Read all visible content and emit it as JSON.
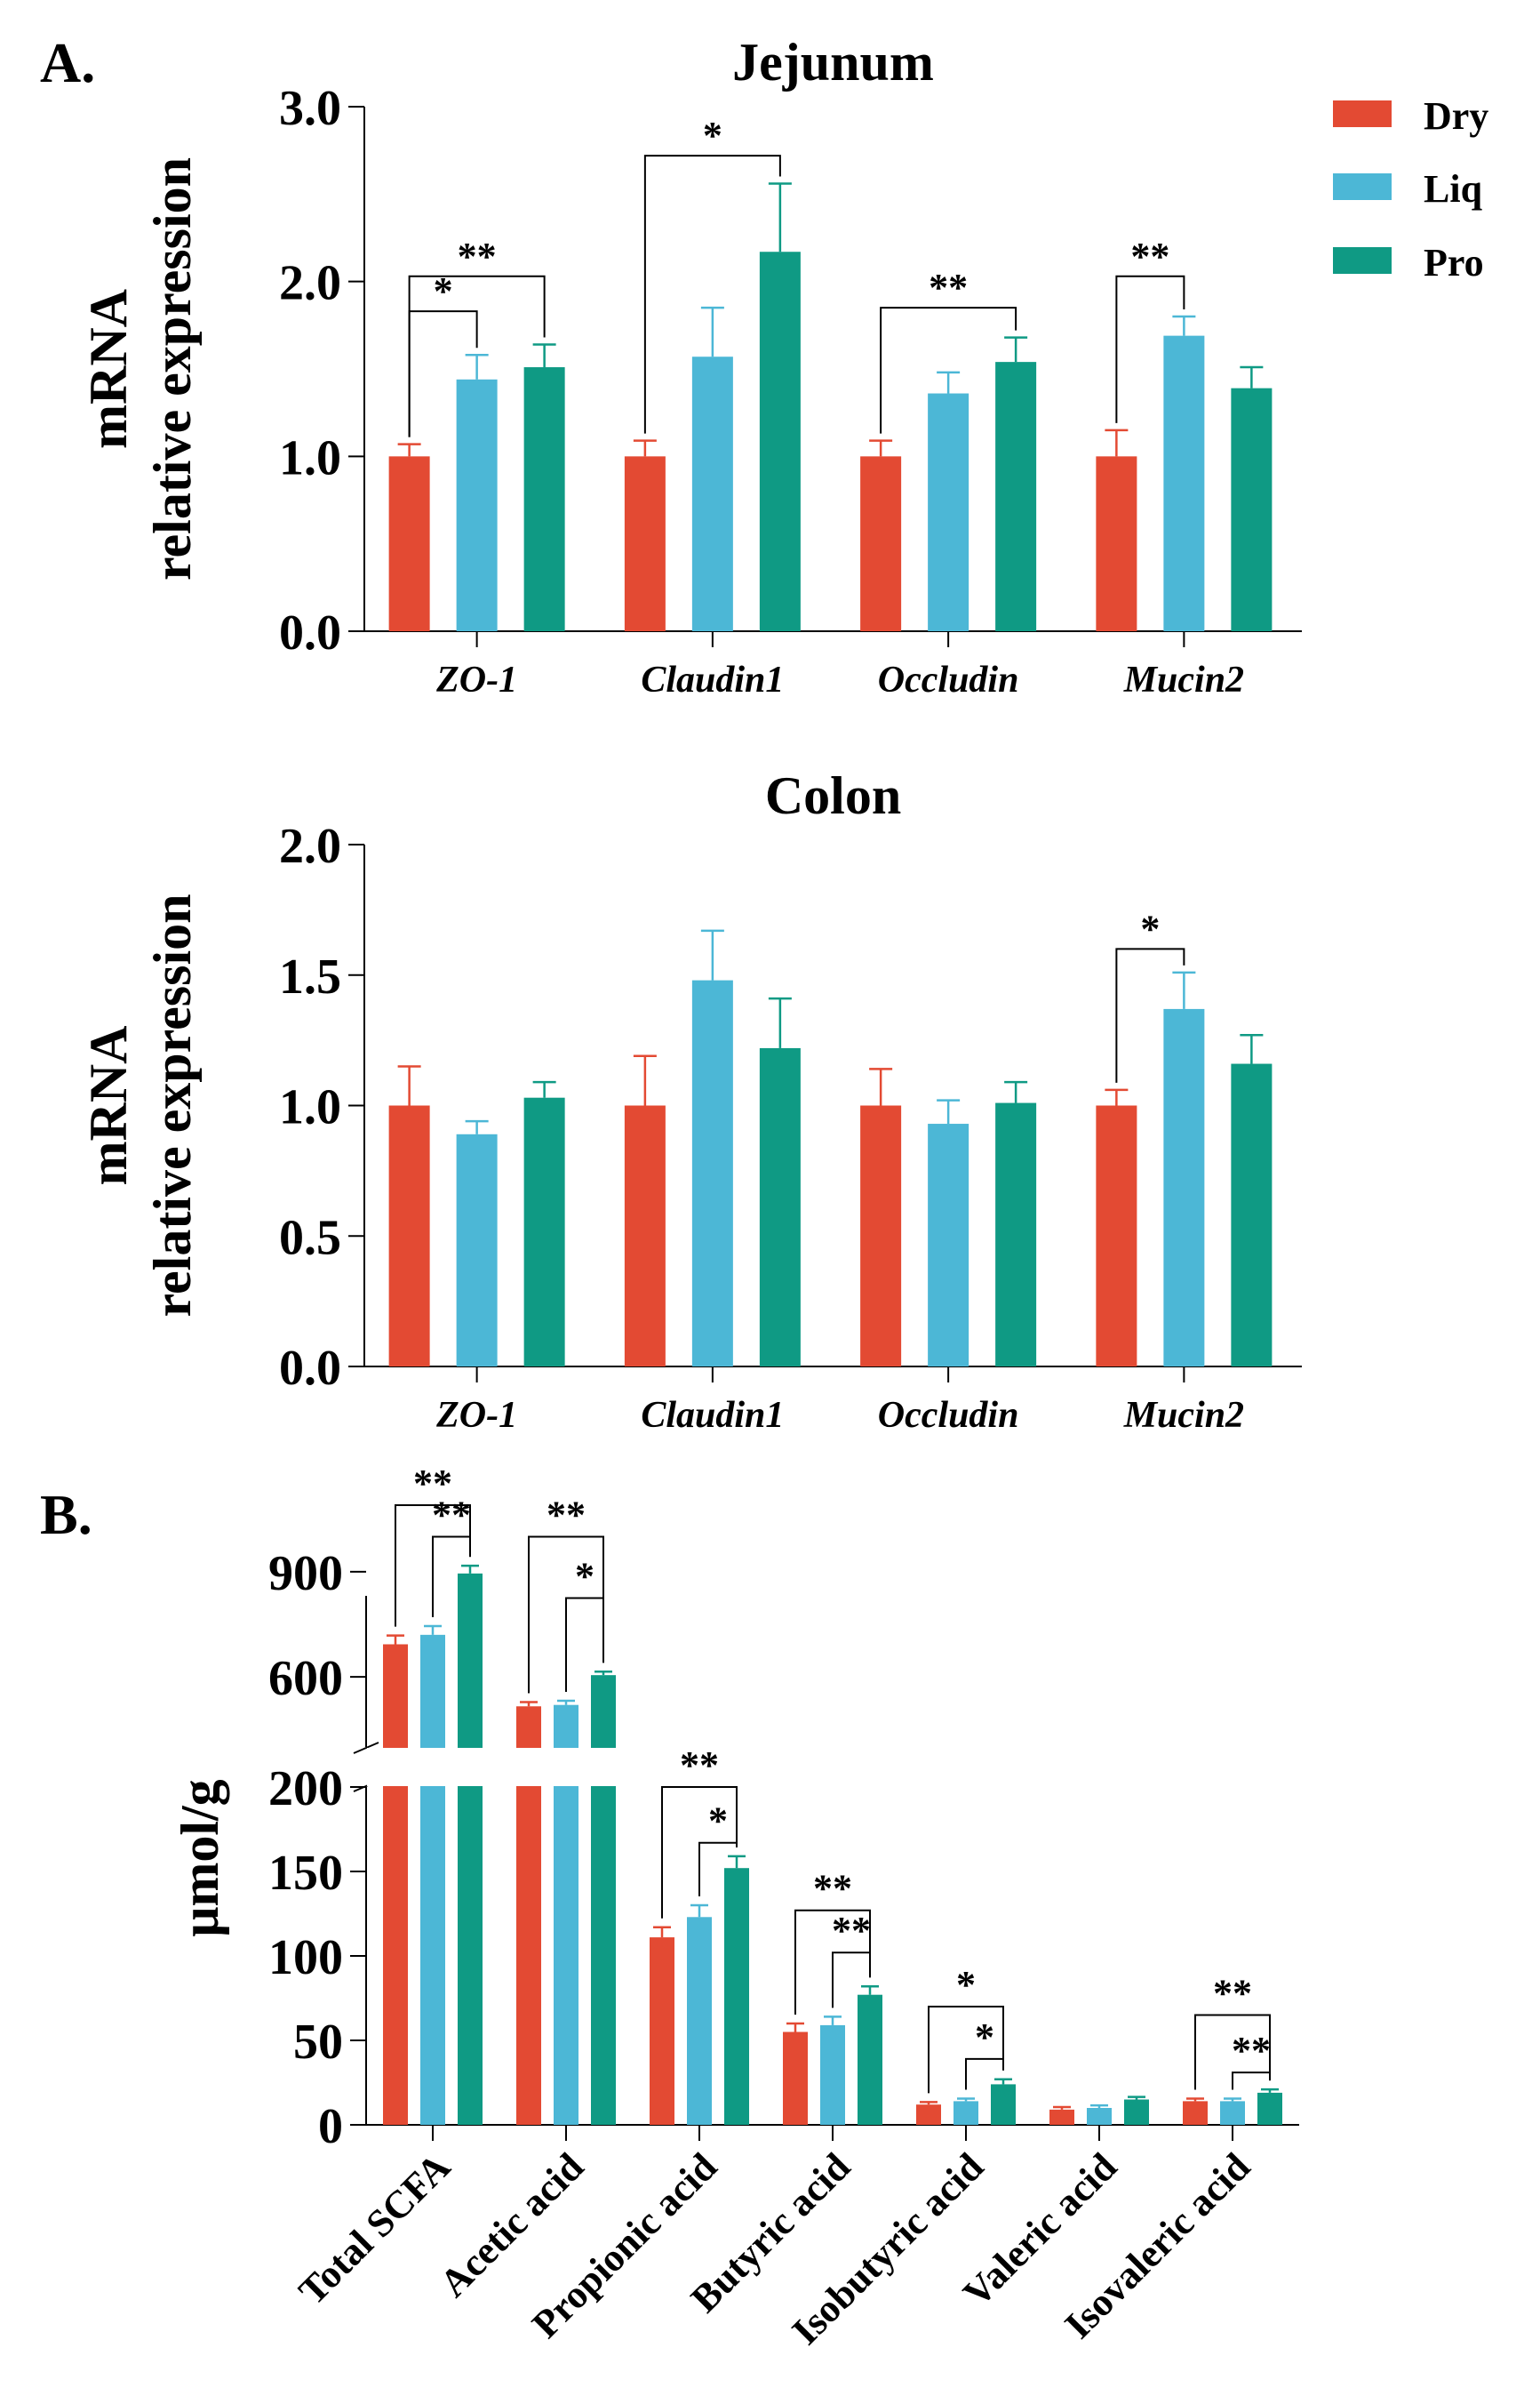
{
  "colors": {
    "dry": "#e34a33",
    "liq": "#4cb7d6",
    "pro": "#0f9a84",
    "axis": "#000000"
  },
  "legend": [
    {
      "key": "dry",
      "label": "Dry"
    },
    {
      "key": "liq",
      "label": "Liq"
    },
    {
      "key": "pro",
      "label": "Pro"
    }
  ],
  "panel_labels": {
    "a": "A.",
    "b": "B."
  },
  "chart_data": [
    {
      "type": "bar",
      "title": "Jejunum",
      "ylabel_line1": "mRNA",
      "ylabel_line2": "relative expression",
      "ylim": [
        0,
        3
      ],
      "yticks": [
        "0.0",
        "1.0",
        "2.0",
        "3.0"
      ],
      "ytick_values": [
        0,
        1,
        2,
        3
      ],
      "categories": [
        "ZO-1",
        "Claudin1",
        "Occludin",
        "Mucin2"
      ],
      "series": [
        {
          "name": "Dry",
          "values": [
            1.0,
            1.0,
            1.0,
            1.0
          ],
          "errors": [
            0.07,
            0.09,
            0.09,
            0.15
          ]
        },
        {
          "name": "Liq",
          "values": [
            1.44,
            1.57,
            1.36,
            1.69
          ],
          "errors": [
            0.14,
            0.28,
            0.12,
            0.11
          ]
        },
        {
          "name": "Pro",
          "values": [
            1.51,
            2.17,
            1.54,
            1.39
          ],
          "errors": [
            0.13,
            0.39,
            0.14,
            0.12
          ]
        }
      ],
      "significance": [
        {
          "category": 0,
          "from": "Dry",
          "to": "Liq",
          "label": "*",
          "level": 1.83
        },
        {
          "category": 0,
          "from": "Dry",
          "to": "Pro",
          "label": "**",
          "level": 2.03
        },
        {
          "category": 1,
          "from": "Dry",
          "to": "Pro",
          "label": "*",
          "level": 2.72
        },
        {
          "category": 2,
          "from": "Dry",
          "to": "Pro",
          "label": "**",
          "level": 1.85
        },
        {
          "category": 3,
          "from": "Dry",
          "to": "Liq",
          "label": "**",
          "level": 2.03
        }
      ]
    },
    {
      "type": "bar",
      "title": "Colon",
      "ylabel_line1": "mRNA",
      "ylabel_line2": "relative expression",
      "ylim": [
        0,
        2
      ],
      "yticks": [
        "0.0",
        "0.5",
        "1.0",
        "1.5",
        "2.0"
      ],
      "ytick_values": [
        0,
        0.5,
        1,
        1.5,
        2
      ],
      "categories": [
        "ZO-1",
        "Claudin1",
        "Occludin",
        "Mucin2"
      ],
      "series": [
        {
          "name": "Dry",
          "values": [
            1.0,
            1.0,
            1.0,
            1.0
          ],
          "errors": [
            0.15,
            0.19,
            0.14,
            0.06
          ]
        },
        {
          "name": "Liq",
          "values": [
            0.89,
            1.48,
            0.93,
            1.37
          ],
          "errors": [
            0.05,
            0.19,
            0.09,
            0.14
          ]
        },
        {
          "name": "Pro",
          "values": [
            1.03,
            1.22,
            1.01,
            1.16
          ],
          "errors": [
            0.06,
            0.19,
            0.08,
            0.11
          ]
        }
      ],
      "significance": [
        {
          "category": 3,
          "from": "Dry",
          "to": "Liq",
          "label": "*",
          "level": 1.6
        }
      ]
    },
    {
      "type": "bar",
      "title": "",
      "ylabel": "μmol/g",
      "y_broken": true,
      "ylim_lower": [
        0,
        200
      ],
      "ylim_upper": [
        400,
        1000
      ],
      "yticks": [
        "0",
        "50",
        "100",
        "150",
        "200",
        "600",
        "900"
      ],
      "ytick_values": [
        0,
        50,
        100,
        150,
        200,
        600,
        900
      ],
      "categories": [
        "Total SCFA",
        "Acetic acid",
        "Propionic acid",
        "Butyric acid",
        "Isobutyric acid",
        "Valeric acid",
        "Isovaleric acid"
      ],
      "series": [
        {
          "name": "Dry",
          "values": [
            693,
            516,
            111,
            55,
            12,
            9,
            14
          ],
          "errors": [
            25,
            12,
            6,
            5,
            1.5,
            1.5,
            1.5
          ]
        },
        {
          "name": "Liq",
          "values": [
            720,
            520,
            123,
            59,
            14,
            10,
            14
          ],
          "errors": [
            25,
            12,
            7,
            5,
            1.5,
            1.5,
            1.5
          ]
        },
        {
          "name": "Pro",
          "values": [
            895,
            605,
            152,
            77,
            24,
            15,
            19
          ],
          "errors": [
            22,
            10,
            7,
            5,
            3,
            1.5,
            2
          ]
        }
      ],
      "significance": [
        {
          "category": 0,
          "from": "Dry",
          "to": "Pro",
          "label": "**",
          "level": 1090
        },
        {
          "category": 0,
          "from": "Liq",
          "to": "Pro",
          "label": "**",
          "level": 1000
        },
        {
          "category": 1,
          "from": "Dry",
          "to": "Pro",
          "label": "**",
          "level": 1000
        },
        {
          "category": 1,
          "from": "Liq",
          "to": "Pro",
          "label": "*",
          "level": 825
        },
        {
          "category": 2,
          "from": "Dry",
          "to": "Pro",
          "label": "**",
          "level": 200
        },
        {
          "category": 2,
          "from": "Liq",
          "to": "Pro",
          "label": "*",
          "level": 167
        },
        {
          "category": 3,
          "from": "Dry",
          "to": "Pro",
          "label": "**",
          "level": 127
        },
        {
          "category": 3,
          "from": "Liq",
          "to": "Pro",
          "label": "**",
          "level": 102
        },
        {
          "category": 4,
          "from": "Dry",
          "to": "Pro",
          "label": "*",
          "level": 70
        },
        {
          "category": 4,
          "from": "Liq",
          "to": "Pro",
          "label": "*",
          "level": 39
        },
        {
          "category": 6,
          "from": "Dry",
          "to": "Pro",
          "label": "**",
          "level": 65
        },
        {
          "category": 6,
          "from": "Liq",
          "to": "Pro",
          "label": "**",
          "level": 31
        }
      ]
    }
  ]
}
